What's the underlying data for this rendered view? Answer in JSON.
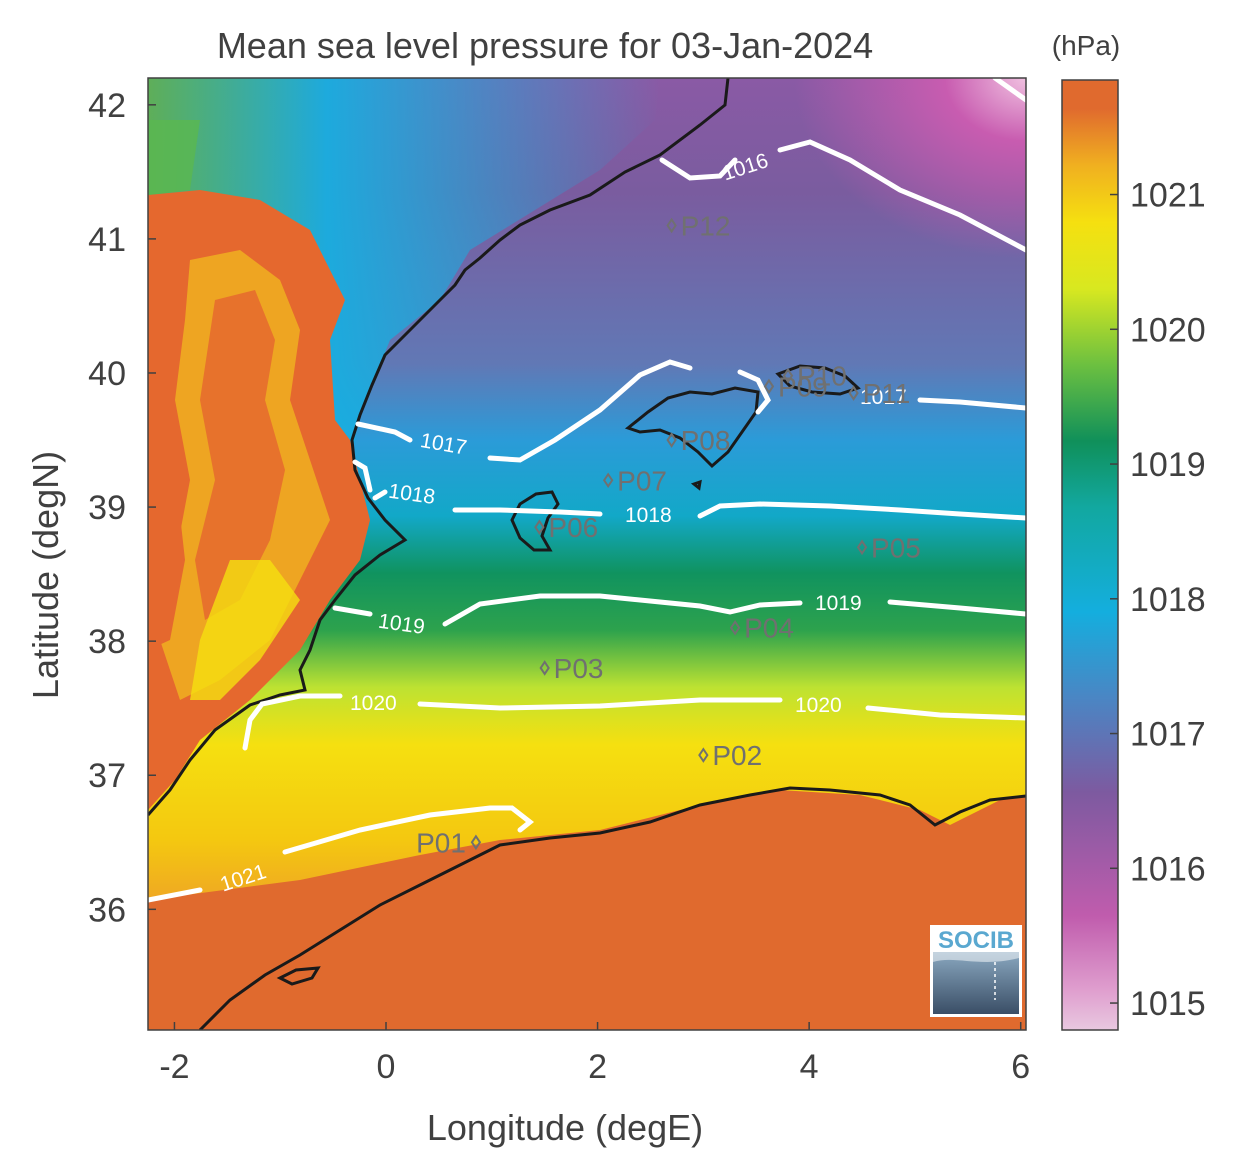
{
  "map": {
    "title": "Mean sea level pressure for 03-Jan-2024",
    "xlabel": "Longitude (degE)",
    "ylabel": "Latitude (degN)",
    "xticks": [
      "-2",
      "0",
      "2",
      "4",
      "6"
    ],
    "yticks": [
      "36",
      "37",
      "38",
      "39",
      "40",
      "41",
      "42"
    ],
    "x_range": [
      -2.25,
      6.05
    ],
    "y_range": [
      35.1,
      42.2
    ]
  },
  "colorbar": {
    "unit": "(hPa)",
    "ticks": [
      "1015",
      "1016",
      "1017",
      "1018",
      "1019",
      "1020",
      "1021"
    ],
    "range": [
      1014.8,
      1021.85
    ],
    "colors": [
      "#e6bcd8",
      "#c05cad",
      "#7d5aa0",
      "#4a86c4",
      "#14aede",
      "#12a8a0",
      "#10905a",
      "#3cae4a",
      "#ade83a",
      "#f5e010",
      "#f0b020",
      "#e06a2e"
    ]
  },
  "contours": [
    {
      "label": "1016",
      "color": "#ffffff"
    },
    {
      "label": "1017",
      "color": "#ffffff"
    },
    {
      "label": "1018",
      "color": "#ffffff"
    },
    {
      "label": "1019",
      "color": "#ffffff"
    },
    {
      "label": "1020",
      "color": "#ffffff"
    },
    {
      "label": "1021",
      "color": "#ffffff"
    }
  ],
  "points": [
    {
      "name": "P01",
      "lon": 0.85,
      "lat": 36.5
    },
    {
      "name": "P02",
      "lon": 3.0,
      "lat": 37.15
    },
    {
      "name": "P03",
      "lon": 1.5,
      "lat": 37.8
    },
    {
      "name": "P04",
      "lon": 3.3,
      "lat": 38.1
    },
    {
      "name": "P05",
      "lon": 4.5,
      "lat": 38.7
    },
    {
      "name": "P06",
      "lon": 1.45,
      "lat": 38.85
    },
    {
      "name": "P07",
      "lon": 2.1,
      "lat": 39.2
    },
    {
      "name": "P08",
      "lon": 2.7,
      "lat": 39.5
    },
    {
      "name": "P09",
      "lon": 3.62,
      "lat": 39.9
    },
    {
      "name": "P10",
      "lon": 3.8,
      "lat": 39.98
    },
    {
      "name": "P11",
      "lon": 4.42,
      "lat": 39.85
    },
    {
      "name": "P12",
      "lon": 2.7,
      "lat": 41.1
    }
  ],
  "logo": {
    "text": "SOCIB",
    "color": "#5aa8d0"
  }
}
